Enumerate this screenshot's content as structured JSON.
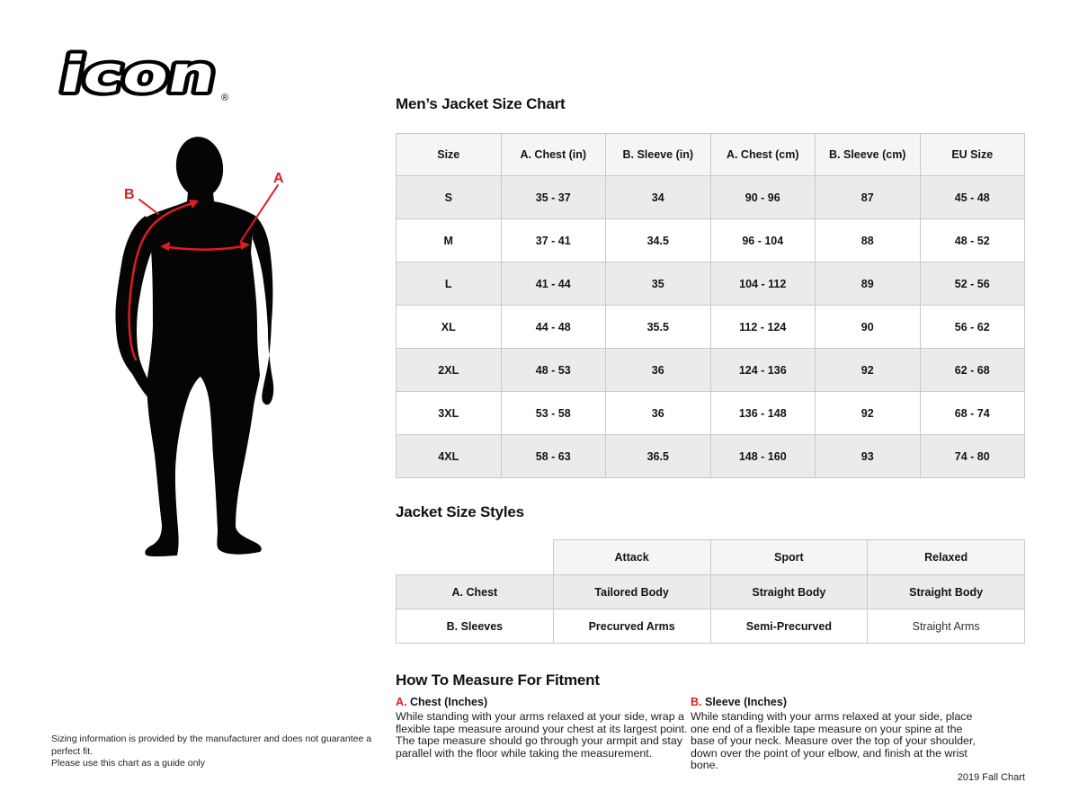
{
  "colors": {
    "accent": "#e01b22",
    "row_gray": "#ebebeb",
    "header_gray": "#f5f5f5",
    "border": "#c9c9c9"
  },
  "logo": {
    "text": "icon",
    "registered": "®"
  },
  "figure": {
    "label_a": "A",
    "label_b": "B"
  },
  "size_chart": {
    "title": "Men’s Jacket Size Chart",
    "columns": [
      "Size",
      "A. Chest (in)",
      "B. Sleeve (in)",
      "A. Chest (cm)",
      "B. Sleeve (cm)",
      "EU Size"
    ],
    "rows": [
      [
        "S",
        "35 - 37",
        "34",
        "90 - 96",
        "87",
        "45 - 48"
      ],
      [
        "M",
        "37 - 41",
        "34.5",
        "96 - 104",
        "88",
        "48 - 52"
      ],
      [
        "L",
        "41 - 44",
        "35",
        "104 - 112",
        "89",
        "52 - 56"
      ],
      [
        "XL",
        "44 - 48",
        "35.5",
        "112 - 124",
        "90",
        "56 - 62"
      ],
      [
        "2XL",
        "48 - 53",
        "36",
        "124 - 136",
        "92",
        "62 - 68"
      ],
      [
        "3XL",
        "53 - 58",
        "36",
        "136 - 148",
        "92",
        "68 - 74"
      ],
      [
        "4XL",
        "58 - 63",
        "36.5",
        "148 - 160",
        "93",
        "74 - 80"
      ]
    ]
  },
  "styles_chart": {
    "title": "Jacket Size Styles",
    "columns": [
      "",
      "Attack",
      "Sport",
      "Relaxed"
    ],
    "rows": [
      [
        "A. Chest",
        "Tailored Body",
        "Straight Body",
        "Straight Body"
      ],
      [
        "B. Sleeves",
        "Precurved Arms",
        "Semi-Precurved",
        "Straight Arms"
      ]
    ]
  },
  "how_to_measure": {
    "title": "How To Measure For Fitment",
    "sections": [
      {
        "letter": "A.",
        "heading": "Chest (Inches)",
        "body": "While standing with your arms relaxed at your side, wrap a flexible tape measure around your chest at its largest point. The tape measure should go through your armpit and stay parallel with the floor while taking the measurement."
      },
      {
        "letter": "B.",
        "heading": "Sleeve (Inches)",
        "body": "While standing with your arms relaxed at your side, place one end of a flexible tape measure on your spine at the base of your neck. Measure over the top of your shoulder, down over the point of your elbow, and finish at the wrist bone."
      }
    ]
  },
  "footer": {
    "disclaimer": "Sizing information is provided by the manufacturer and does not guarantee a perfect fit.\nPlease use this chart as a guide only",
    "chart_version": "2019 Fall Chart"
  }
}
